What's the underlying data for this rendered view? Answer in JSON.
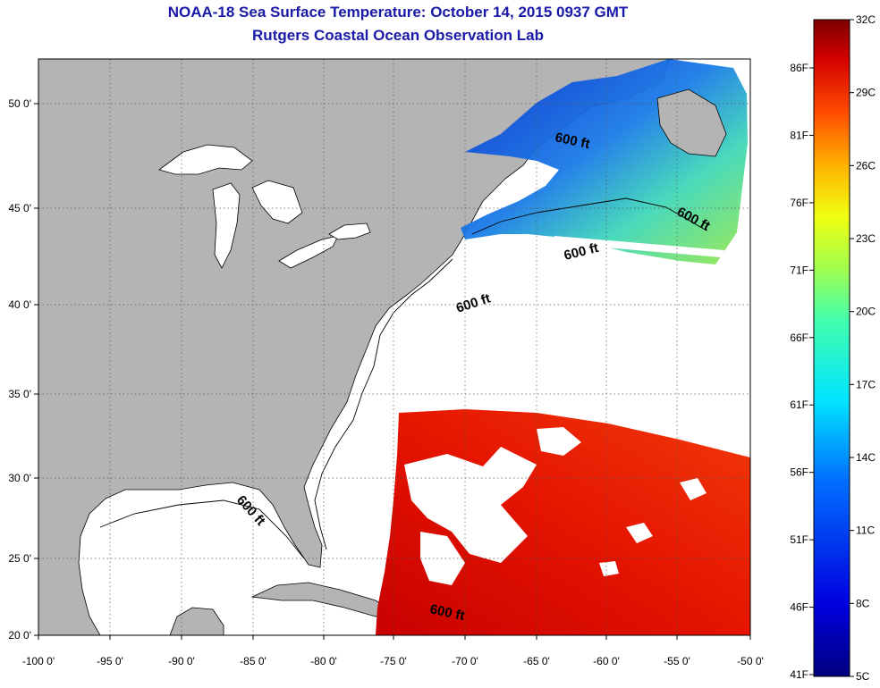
{
  "title": "NOAA-18 Sea Surface Temperature:  October 14, 2015 0937 GMT",
  "subtitle": "Rutgers Coastal Ocean Observation Lab",
  "contour_label": "600 ft",
  "axes": {
    "lon_labels": [
      "-100 0'",
      "-95 0'",
      "-90 0'",
      "-85 0'",
      "-80 0'",
      "-75 0'",
      "-70 0'",
      "-65 0'",
      "-60 0'",
      "-55 0'",
      "-50 0'"
    ],
    "lat_labels": [
      "50 0'",
      "45 0'",
      "40 0'",
      "35 0'",
      "30 0'",
      "25 0'",
      "20 0'"
    ]
  },
  "colorbar": {
    "celsius_labels": [
      "32C",
      "29C",
      "26C",
      "23C",
      "20C",
      "17C",
      "14C",
      "11C",
      "8C",
      "5C"
    ],
    "fahrenheit_labels": [
      "86F",
      "81F",
      "76F",
      "71F",
      "66F",
      "61F",
      "56F",
      "51F",
      "46F",
      "41F"
    ],
    "colors": [
      "#7f0000",
      "#d50000",
      "#ff3a00",
      "#ff8a00",
      "#ffd400",
      "#c8ff37",
      "#5cffa0",
      "#00e4ff",
      "#0090ff",
      "#0030ff",
      "#0000c4",
      "#00007f"
    ]
  },
  "colors": {
    "land": "#b4b4b4",
    "ocean_no_data": "#ffffff",
    "title": "#1a1aa8"
  }
}
